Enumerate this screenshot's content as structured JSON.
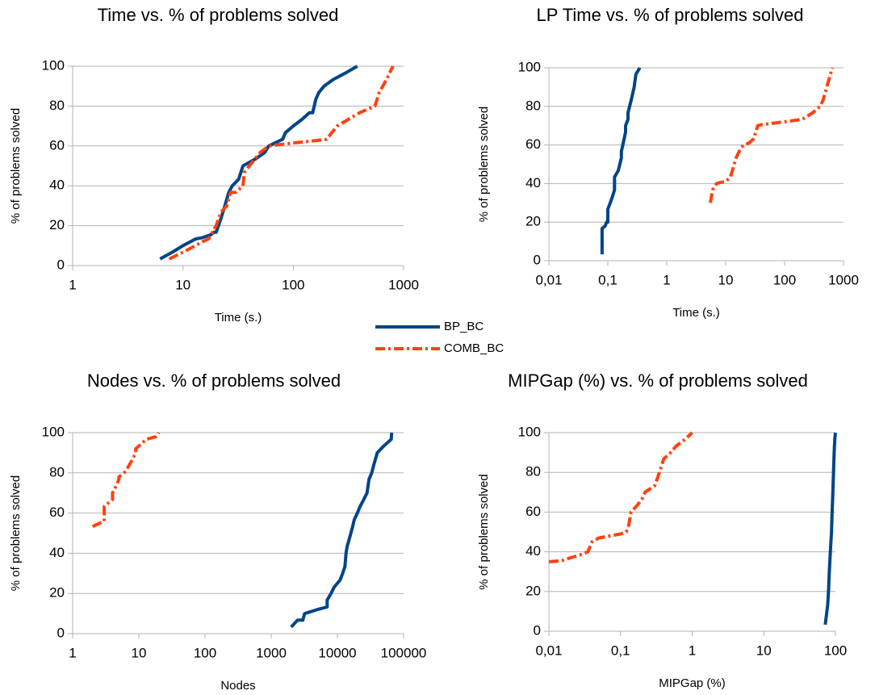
{
  "chart_data": [
    {
      "type": "line",
      "title": "Time vs. % of problems solved",
      "x_label": "Time (s.)",
      "y_label": "% of problems solved",
      "xlog": true,
      "grid": true,
      "xlim": [
        1,
        1000
      ],
      "xticks": [
        1,
        10,
        100,
        1000
      ],
      "ylim": [
        0,
        100
      ],
      "yticks": [
        0,
        20,
        40,
        60,
        80,
        100
      ],
      "series": [
        {
          "name": "BP_BC",
          "color": "#004586",
          "linestyle": "solid",
          "x": [
            6.2,
            8,
            10,
            13,
            15,
            18,
            19,
            20,
            22,
            24,
            26,
            28,
            32,
            35,
            45,
            55,
            60,
            80,
            85,
            100,
            120,
            140,
            150,
            160,
            170,
            190,
            230,
            300,
            380
          ],
          "values": [
            3.3,
            6.7,
            10,
            13.3,
            14,
            15.5,
            16.7,
            16.7,
            23.3,
            30,
            36.7,
            40,
            43.3,
            50,
            53.3,
            56.7,
            60,
            63.3,
            66.7,
            70,
            73.3,
            76.7,
            76.7,
            83.3,
            86.7,
            90,
            93.3,
            96.7,
            100
          ]
        },
        {
          "name": "COMB_BC",
          "color": "#ff420e",
          "linestyle": "dashdot",
          "x": [
            7.5,
            10,
            13,
            15,
            17,
            20,
            22,
            25,
            27,
            30,
            35,
            36,
            40,
            50,
            60,
            100,
            150,
            200,
            250,
            400,
            550,
            600,
            700,
            800
          ],
          "values": [
            3.3,
            6.7,
            10,
            12,
            13.3,
            20,
            26.7,
            30,
            36.7,
            36.7,
            40,
            46.7,
            50,
            56.7,
            60,
            61.5,
            62.5,
            63.3,
            70,
            76.7,
            80,
            86.7,
            93.3,
            100
          ]
        }
      ]
    },
    {
      "type": "line",
      "title": "LP Time vs. % of problems solved",
      "x_label": "Time (s.)",
      "y_label": "% of problems solved",
      "xlog": true,
      "grid": true,
      "xlim": [
        0.01,
        1000
      ],
      "xticks": [
        {
          "value": 0.01,
          "label": "0,01"
        },
        {
          "value": 0.1,
          "label": "0,1"
        },
        1,
        10,
        100,
        1000
      ],
      "ylim": [
        0,
        100
      ],
      "yticks": [
        0,
        20,
        40,
        60,
        80,
        100
      ],
      "series": [
        {
          "color": "#004586",
          "linestyle": "solid",
          "x": [
            0.08,
            0.08,
            0.09,
            0.095,
            0.1,
            0.1,
            0.11,
            0.12,
            0.13,
            0.13,
            0.15,
            0.16,
            0.17,
            0.17,
            0.18,
            0.19,
            0.2,
            0.2,
            0.22,
            0.22,
            0.25,
            0.28,
            0.3,
            0.35
          ],
          "values": [
            3.3,
            16.7,
            18,
            20,
            20,
            26.7,
            30,
            33.3,
            36.7,
            43.3,
            46.7,
            50,
            53.3,
            56.7,
            60,
            63.3,
            66.7,
            70,
            73.3,
            76.7,
            83.3,
            90,
            96.7,
            100
          ]
        },
        {
          "color": "#ff420e",
          "linestyle": "dashdot",
          "x": [
            5.5,
            6,
            7,
            8,
            10,
            12,
            13,
            15,
            17,
            20,
            25,
            30,
            35,
            40,
            100,
            200,
            300,
            400,
            450,
            600,
            650
          ],
          "values": [
            30,
            36.7,
            40,
            40.5,
            41,
            43.3,
            46.7,
            53.3,
            56.7,
            60,
            61,
            63.3,
            70,
            70.5,
            72,
            73.3,
            76.7,
            80,
            83.3,
            96.7,
            100
          ]
        }
      ]
    },
    {
      "type": "line",
      "title": "Nodes vs. % of problems solved",
      "x_label": "Nodes",
      "y_label": "% of problems solved",
      "xlog": true,
      "grid": true,
      "xlim": [
        1,
        100000
      ],
      "xticks": [
        1,
        10,
        100,
        1000,
        10000,
        100000
      ],
      "ylim": [
        0,
        100
      ],
      "yticks": [
        0,
        20,
        40,
        60,
        80,
        100
      ],
      "series": [
        {
          "color": "#004586",
          "linestyle": "solid",
          "x": [
            2000,
            2500,
            3000,
            3200,
            5000,
            7000,
            7000,
            8000,
            9000,
            11000,
            12000,
            13000,
            13500,
            14000,
            15000,
            16000,
            17000,
            18000,
            20000,
            22000,
            25000,
            28000,
            30000,
            33000,
            35000,
            40000,
            50000,
            65000,
            66000
          ],
          "values": [
            3.3,
            6.7,
            6.7,
            10,
            12,
            13.3,
            16.7,
            20,
            23.3,
            26.7,
            30,
            33.3,
            40,
            43.3,
            46.7,
            50,
            53.3,
            56.7,
            60,
            63.3,
            66.7,
            70,
            76.7,
            80,
            83.3,
            90,
            93.3,
            96.7,
            100
          ]
        },
        {
          "color": "#ff420e",
          "linestyle": "dashdot",
          "x": [
            2,
            3,
            3,
            3,
            4,
            4,
            4.5,
            5,
            5,
            6,
            7,
            8,
            9,
            9,
            10,
            13,
            18,
            20
          ],
          "values": [
            53.3,
            56,
            60,
            63.3,
            66.7,
            70,
            73.3,
            76.7,
            78,
            80,
            83.3,
            86.7,
            90,
            92,
            93.3,
            96.7,
            98,
            100
          ]
        }
      ]
    },
    {
      "type": "line",
      "title": "MIPGap (%) vs. % of problems solved",
      "x_label": "MIPGap (%)",
      "y_label": "% of problems solved",
      "xlog": true,
      "grid": true,
      "xlim": [
        0.01,
        100
      ],
      "xticks": [
        {
          "value": 0.01,
          "label": "0,01"
        },
        {
          "value": 0.1,
          "label": "0,1"
        },
        1,
        10,
        100
      ],
      "ylim": [
        0,
        100
      ],
      "yticks": [
        0,
        20,
        40,
        60,
        80,
        100
      ],
      "series": [
        {
          "color": "#004586",
          "linestyle": "solid",
          "x": [
            72,
            74,
            78,
            80,
            82,
            85,
            88,
            90,
            92,
            94,
            96,
            98,
            100
          ],
          "values": [
            3.3,
            6.7,
            13.3,
            20,
            30,
            40,
            50,
            60,
            70,
            80,
            90,
            96.7,
            100
          ]
        },
        {
          "color": "#ff420e",
          "linestyle": "dashdot",
          "x": [
            0.01,
            0.015,
            0.02,
            0.025,
            0.03,
            0.035,
            0.04,
            0.05,
            0.06,
            0.1,
            0.12,
            0.13,
            0.14,
            0.17,
            0.2,
            0.22,
            0.3,
            0.35,
            0.4,
            0.5,
            0.6,
            0.8,
            1
          ],
          "values": [
            35,
            35.5,
            37,
            38,
            39,
            40,
            45,
            47,
            47.5,
            49,
            50,
            53.3,
            60,
            63.3,
            66.7,
            70,
            73.3,
            80,
            86.7,
            90,
            93.3,
            96.7,
            100
          ]
        }
      ]
    }
  ]
}
